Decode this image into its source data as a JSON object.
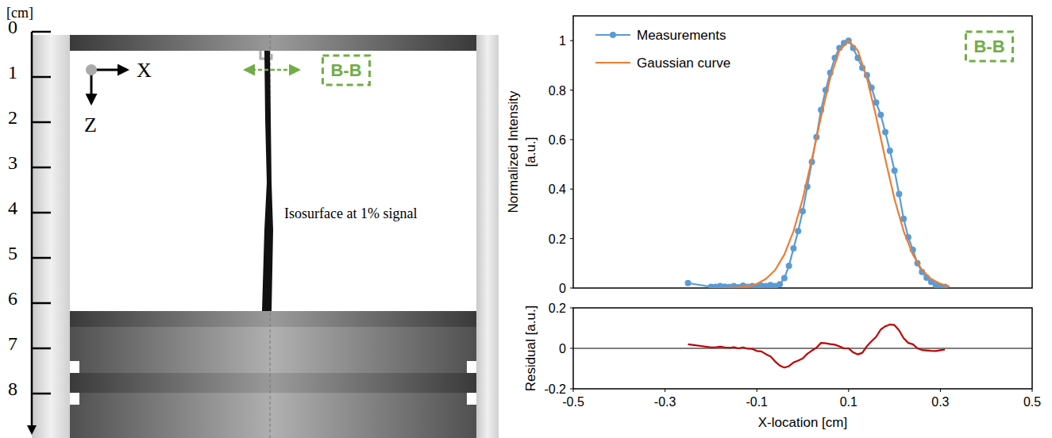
{
  "diagram": {
    "unit_label": "[cm]",
    "ruler_ticks": [
      0,
      1,
      2,
      3,
      4,
      5,
      6,
      7,
      8
    ],
    "axis_x": "X",
    "axis_z": "Z",
    "section": "B-B",
    "annotation": "Isosurface at 1% signal"
  },
  "chart_data": [
    {
      "type": "line",
      "ylabel": "Normalized Intensity [a.u.]",
      "annotation": "B-B",
      "xlim": [
        -0.5,
        0.5
      ],
      "ylim": [
        0,
        1.1
      ],
      "yticks": [
        0,
        0.2,
        0.4,
        0.6,
        0.8,
        1
      ],
      "tick_labels": "y",
      "grid": false,
      "legend": "top-left",
      "series": [
        {
          "name": "Measurements",
          "color": "#5b9bd5",
          "marker": "circle",
          "line_style": "solid",
          "x": [
            -0.25,
            -0.2,
            -0.19,
            -0.18,
            -0.17,
            -0.16,
            -0.15,
            -0.14,
            -0.13,
            -0.12,
            -0.11,
            -0.1,
            -0.09,
            -0.08,
            -0.07,
            -0.06,
            -0.05,
            -0.04,
            -0.03,
            -0.02,
            -0.01,
            0,
            0.01,
            0.02,
            0.03,
            0.04,
            0.05,
            0.06,
            0.07,
            0.08,
            0.09,
            0.1,
            0.11,
            0.12,
            0.13,
            0.14,
            0.15,
            0.16,
            0.17,
            0.18,
            0.19,
            0.2,
            0.21,
            0.22,
            0.23,
            0.24,
            0.25,
            0.26,
            0.27,
            0.28,
            0.29,
            0.3,
            0.31
          ],
          "values": [
            0.02,
            0.005,
            0.005,
            0.008,
            0.006,
            0.004,
            0.008,
            0.003,
            0.01,
            0.005,
            0.008,
            0.004,
            0.01,
            0.008,
            0.012,
            0.008,
            0.015,
            0.04,
            0.09,
            0.16,
            0.23,
            0.31,
            0.41,
            0.51,
            0.61,
            0.72,
            0.8,
            0.87,
            0.93,
            0.97,
            0.99,
            1,
            0.97,
            0.93,
            0.89,
            0.86,
            0.81,
            0.75,
            0.7,
            0.63,
            0.555,
            0.475,
            0.38,
            0.28,
            0.205,
            0.155,
            0.1,
            0.065,
            0.042,
            0.025,
            0.012,
            0.008,
            0.005
          ]
        },
        {
          "name": "Gaussian curve",
          "color": "#ed7d31",
          "line_style": "solid",
          "x": [
            -0.2,
            -0.18,
            -0.16,
            -0.14,
            -0.12,
            -0.1,
            -0.08,
            -0.06,
            -0.04,
            -0.02,
            0,
            0.02,
            0.04,
            0.06,
            0.08,
            0.1,
            0.12,
            0.14,
            0.16,
            0.18,
            0.2,
            0.22,
            0.24,
            0.26,
            0.28,
            0.3,
            0.32
          ],
          "values": [
            0,
            0,
            0.001,
            0.003,
            0.007,
            0.017,
            0.037,
            0.073,
            0.135,
            0.23,
            0.36,
            0.521,
            0.693,
            0.849,
            0.96,
            1,
            0.96,
            0.849,
            0.693,
            0.521,
            0.36,
            0.23,
            0.135,
            0.073,
            0.037,
            0.017,
            0.007
          ]
        }
      ]
    },
    {
      "type": "line",
      "ylabel": "Residual [a.u.]",
      "xlabel": "X-location [cm]",
      "xlim": [
        -0.5,
        0.5
      ],
      "xticks": [
        -0.5,
        -0.3,
        -0.1,
        0.1,
        0.3,
        0.5
      ],
      "ylim": [
        -0.2,
        0.2
      ],
      "yticks": [
        -0.2,
        0,
        0.2
      ],
      "grid": false,
      "series": [
        {
          "color": "#c00000",
          "line_style": "solid",
          "x": [
            -0.25,
            -0.2,
            -0.19,
            -0.18,
            -0.17,
            -0.16,
            -0.15,
            -0.14,
            -0.13,
            -0.12,
            -0.11,
            -0.1,
            -0.09,
            -0.08,
            -0.07,
            -0.06,
            -0.05,
            -0.04,
            -0.03,
            -0.02,
            -0.01,
            0,
            0.01,
            0.02,
            0.03,
            0.04,
            0.05,
            0.06,
            0.07,
            0.08,
            0.09,
            0.1,
            0.11,
            0.12,
            0.13,
            0.14,
            0.15,
            0.16,
            0.17,
            0.18,
            0.19,
            0.2,
            0.21,
            0.22,
            0.23,
            0.24,
            0.25,
            0.26,
            0.27,
            0.28,
            0.29,
            0.3,
            0.31
          ],
          "values": [
            0.02,
            0.005,
            0.005,
            0.008,
            0.005,
            0.003,
            0.006,
            0,
            0.005,
            -0.002,
            -0.003,
            -0.013,
            -0.015,
            -0.029,
            -0.04,
            -0.065,
            -0.085,
            -0.095,
            -0.088,
            -0.07,
            -0.061,
            -0.05,
            -0.027,
            -0.011,
            0.003,
            0.027,
            0.025,
            0.021,
            0.018,
            0.01,
            0,
            0,
            -0.02,
            -0.03,
            -0.022,
            0.011,
            0.035,
            0.057,
            0.093,
            0.109,
            0.118,
            0.115,
            0.089,
            0.05,
            0.027,
            0.02,
            0,
            -0.008,
            -0.01,
            -0.012,
            -0.013,
            -0.009,
            -0.006
          ]
        }
      ]
    }
  ]
}
